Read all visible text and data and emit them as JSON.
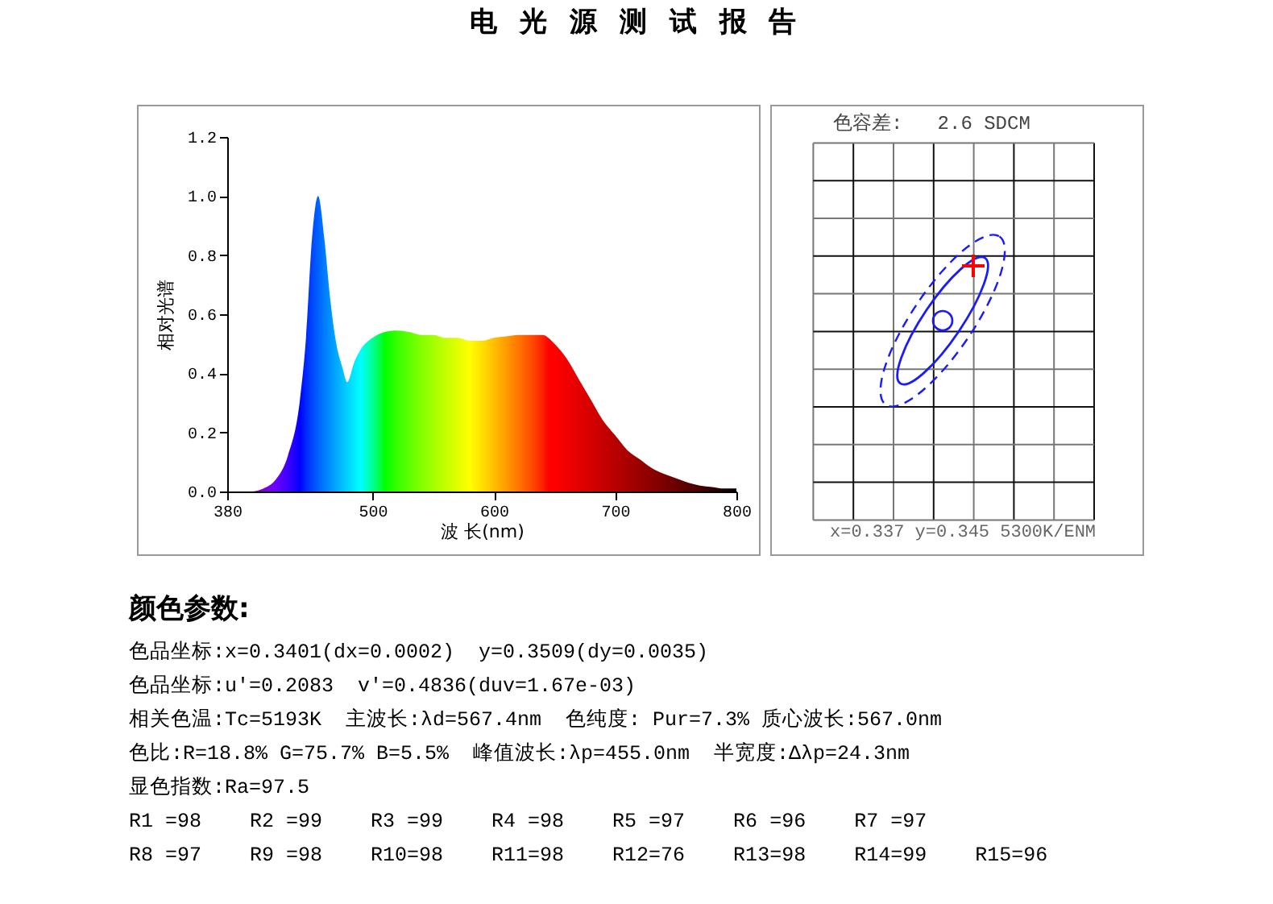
{
  "chart_data": [
    {
      "type": "area",
      "title": "电 光 源 测 试 报 告",
      "xlabel": "波 长(nm)",
      "ylabel": "相对光谱",
      "x": [
        380,
        400,
        410,
        420,
        430,
        440,
        445,
        450,
        455,
        460,
        465,
        470,
        475,
        479,
        485,
        490,
        500,
        510,
        520,
        530,
        540,
        550,
        560,
        570,
        580,
        590,
        600,
        610,
        620,
        630,
        640,
        650,
        660,
        670,
        680,
        690,
        700,
        710,
        720,
        730,
        740,
        750,
        760,
        770,
        780,
        790,
        800
      ],
      "values": [
        0.0,
        0.0,
        0.01,
        0.04,
        0.12,
        0.31,
        0.52,
        0.86,
        1.0,
        0.86,
        0.65,
        0.5,
        0.42,
        0.37,
        0.44,
        0.48,
        0.52,
        0.54,
        0.545,
        0.54,
        0.53,
        0.53,
        0.52,
        0.52,
        0.51,
        0.51,
        0.52,
        0.525,
        0.53,
        0.53,
        0.53,
        0.5,
        0.45,
        0.38,
        0.31,
        0.24,
        0.19,
        0.14,
        0.11,
        0.08,
        0.06,
        0.045,
        0.03,
        0.02,
        0.015,
        0.01,
        0.01
      ],
      "xlim": [
        380,
        800
      ],
      "ylim": [
        0,
        1.2
      ],
      "xticks": [
        380,
        500,
        600,
        700,
        800
      ],
      "yticks": [
        {
          "value": 0,
          "label": "0.0"
        },
        {
          "value": 0.2,
          "label": "0.2"
        },
        {
          "value": 0.4,
          "label": "0.4"
        },
        {
          "value": 0.6,
          "label": "0.6"
        },
        {
          "value": 0.8,
          "label": "0.8"
        },
        {
          "value": 1.0,
          "label": "1.0"
        },
        {
          "value": 1.2,
          "label": "1.2"
        }
      ]
    },
    {
      "type": "other",
      "title": "色容差:   2.6 SDCM",
      "annotations": [
        "x=0.337 y=0.345 5300K/ENM"
      ]
    },
    {
      "type": "other",
      "title": "颜色参数:",
      "annotations": [
        "色品坐标:x=0.3401(dx=0.0002)  y=0.3509(dy=0.0035)",
        "色品坐标:u'=0.2083  v'=0.4836(duv=1.67e-03)",
        "相关色温:Tc=5193K  主波长:λd=567.4nm  色纯度: Pur=7.3% 质心波长:567.0nm",
        "色比:R=18.8% G=75.7% B=5.5%  峰值波长:λp=455.0nm  半宽度:Δλp=24.3nm",
        "显色指数:Ra=97.5",
        "R1 =98    R2 =99    R3 =99    R4 =98    R5 =97    R6 =96    R7 =97",
        "R8 =97    R9 =98    R10=98    R11=98    R12=76    R13=98    R14=99    R15=96"
      ]
    }
  ]
}
